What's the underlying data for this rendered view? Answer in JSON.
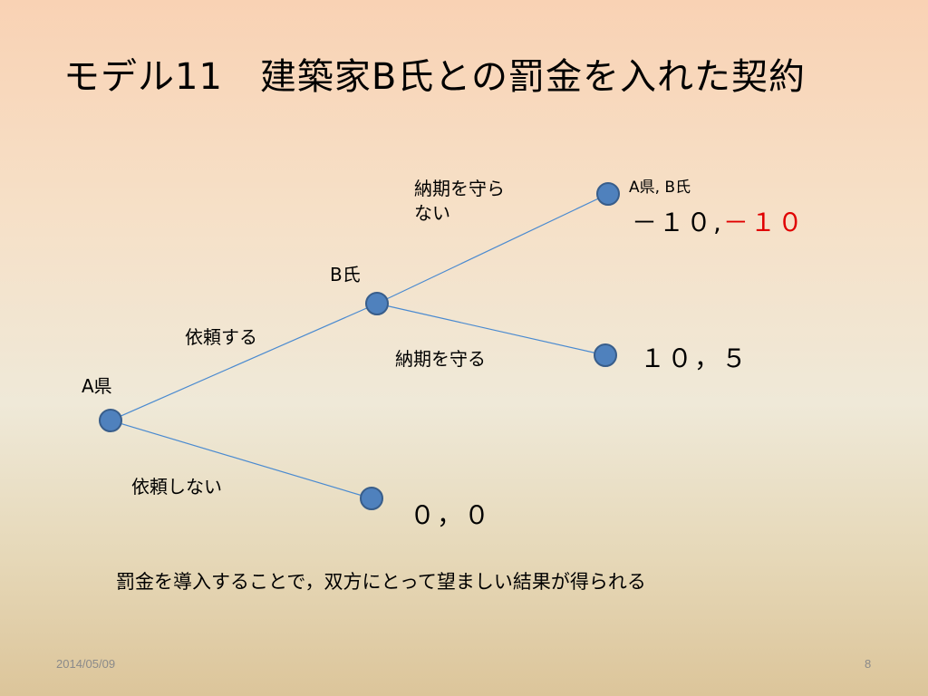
{
  "slide": {
    "title": "モデル11　建築家B氏との罰金を入れた契約",
    "date": "2014/05/09",
    "page_number": "8",
    "note": "罰金を導入することで，双方にとって望ましい結果が得られる"
  },
  "tree": {
    "nodes": {
      "root": "A県",
      "b": "B氏"
    },
    "edges": {
      "request": "依頼する",
      "no_request": "依頼しない",
      "break_deadline_line1": "納期を守ら",
      "break_deadline_line2": "ない",
      "keep_deadline": "納期を守る"
    },
    "payoff_header": "A県, B氏",
    "payoffs": {
      "break_a": "－１０,",
      "break_b": "－１０",
      "keep": "１０，５",
      "no_request": "０，０"
    }
  },
  "colors": {
    "node_fill": "#4f81bd",
    "node_stroke": "#385d8a",
    "edge": "#4a8ad0",
    "highlight": "#e00000"
  }
}
